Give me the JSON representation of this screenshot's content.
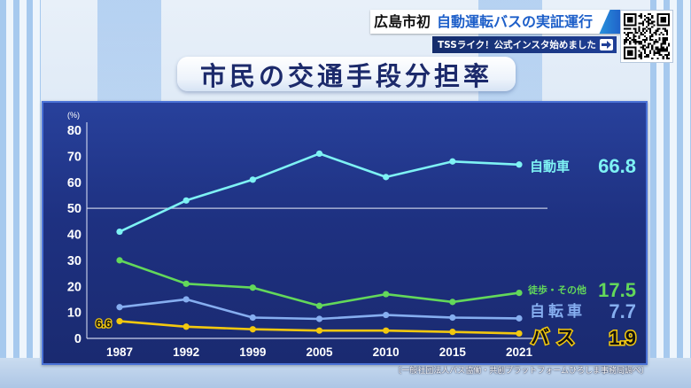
{
  "banner": {
    "headline_prefix": "広島市初",
    "headline_main": "自動運転バスの実証運行",
    "promo_text": "TSSライク！公式インスタ始めました",
    "promo_icon": "arrow-right-icon",
    "qr_icon": "qr-code-icon"
  },
  "source_note": "〔一般社団法人バス協働・共創プラットフォームひろしま事務局調べ〕",
  "colors": {
    "panel": "#1e3181",
    "headline_blue": "#1d5fc9",
    "title_text": "#1c2a6b"
  },
  "chart_data": {
    "type": "line",
    "title": "市民の交通手段分担率",
    "ylabel": "(%)",
    "x": [
      "1987",
      "1992",
      "1999",
      "2005",
      "2010",
      "2015",
      "2021"
    ],
    "ylim": [
      0,
      80
    ],
    "yticks": [
      0,
      10,
      20,
      30,
      40,
      50,
      60,
      70,
      80
    ],
    "reference_line": 50,
    "grid": false,
    "legend": "right",
    "series": [
      {
        "name": "自動車",
        "values": [
          41,
          53,
          61,
          71,
          62,
          68,
          66.8
        ],
        "color": "#7ef2f4"
      },
      {
        "name": "徒歩・その他",
        "values": [
          30,
          21,
          19.5,
          12.5,
          17,
          14,
          17.5
        ],
        "color": "#63d85a"
      },
      {
        "name": "自転車",
        "values": [
          12,
          15,
          8,
          7.5,
          9,
          8,
          7.7
        ],
        "color": "#86aef0"
      },
      {
        "name": "バス",
        "values": [
          6.6,
          4.5,
          3.5,
          3,
          3,
          2.5,
          1.9
        ],
        "color": "#f2c80f",
        "label_color": "#111111"
      }
    ],
    "value_labels": [
      {
        "series": 3,
        "index": 0
      }
    ]
  }
}
